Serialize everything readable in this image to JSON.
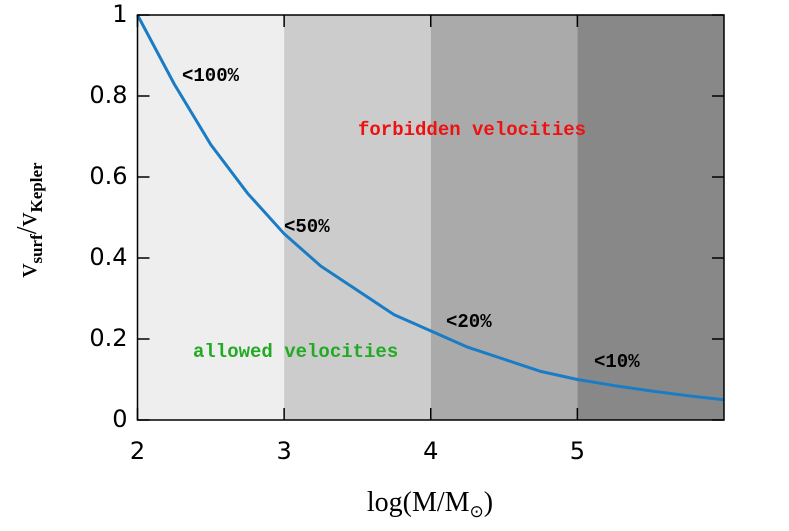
{
  "chart_data": {
    "type": "line",
    "x_label_parts": [
      "log(M/M",
      "⊙",
      ")"
    ],
    "y_label_parts": [
      "v",
      "surf",
      "/v",
      "Kepler"
    ],
    "x": [
      2.0,
      2.25,
      2.5,
      2.75,
      3.0,
      3.25,
      3.5,
      3.75,
      4.0,
      4.25,
      4.5,
      4.75,
      5.0,
      5.25,
      5.5,
      5.75,
      6.0
    ],
    "series": [
      {
        "color": "#1a7cc4",
        "values": [
          1.0,
          0.83,
          0.68,
          0.56,
          0.46,
          0.38,
          0.32,
          0.26,
          0.22,
          0.18,
          0.15,
          0.12,
          0.1,
          0.085,
          0.072,
          0.06,
          0.05
        ]
      }
    ],
    "bands": [
      {
        "from": 2,
        "to": 3,
        "color": "#eeeeee"
      },
      {
        "from": 3,
        "to": 4,
        "color": "#cccccc"
      },
      {
        "from": 4,
        "to": 5,
        "color": "#aaaaaa"
      },
      {
        "from": 5,
        "to": 6,
        "color": "#888888"
      }
    ],
    "annotations": [
      "<100%",
      "<50%",
      "<20%",
      "<10%"
    ],
    "forbidden_label": {
      "text": "forbidden velocities",
      "color": "#ee1111"
    },
    "allowed_label": {
      "text": "allowed velocities",
      "color": "#22aa22"
    },
    "xlim": [
      2,
      6
    ],
    "xticks": [
      2,
      3,
      4,
      5
    ],
    "ylim": [
      0,
      1
    ],
    "yticks": [
      0,
      0.2,
      0.4,
      0.6,
      0.8,
      1
    ]
  }
}
